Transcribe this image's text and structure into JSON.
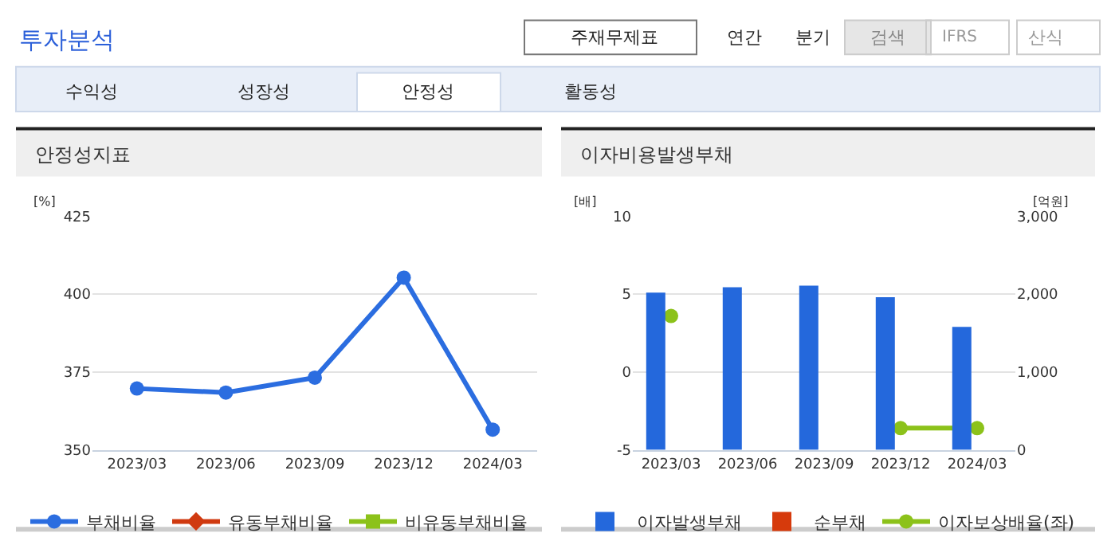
{
  "chart_data": [
    {
      "type": "line",
      "title": "안정성지표",
      "ylabel": "[%]",
      "annotations": [
        "투자분석",
        "주재무제표",
        "연간",
        "분기",
        "검색",
        "IFRS",
        "산식",
        "수익성",
        "성장성",
        "안정성",
        "활동성"
      ],
      "categories": [
        "2023/03",
        "2023/06",
        "2023/09",
        "2023/12",
        "2024/03"
      ],
      "series": [
        {
          "name": "부채비율",
          "color": "#2b6de0",
          "marker": "circle",
          "values": [
            369.7,
            368.4,
            373.2,
            405.3,
            356.5
          ]
        },
        {
          "name": "유동부채비율",
          "color": "#d03a10",
          "marker": "diamond",
          "values": [
            null,
            null,
            null,
            null,
            null
          ]
        },
        {
          "name": "비유동부채비율",
          "color": "#8cc21a",
          "marker": "square",
          "values": [
            null,
            null,
            null,
            null,
            null
          ]
        }
      ],
      "ylim": [
        350,
        425
      ],
      "yticks": [
        350,
        375,
        400,
        425
      ],
      "grid": "y",
      "legend": "bottom"
    },
    {
      "type": "bar",
      "title": "이자비용발생부채",
      "ylabel": "[배]",
      "y2label": "[억원]",
      "categories": [
        "2023/03",
        "2023/06",
        "2023/09",
        "2023/12",
        "2024/03"
      ],
      "series": [
        {
          "name": "이자발생부채",
          "color": "#2468dc",
          "axis": "y2",
          "values": [
            2020,
            2090,
            2110,
            1960,
            1580
          ]
        },
        {
          "name": "순부채",
          "color": "#d63a0c",
          "axis": "y2",
          "values": [
            null,
            null,
            null,
            null,
            null
          ]
        },
        {
          "name": "이자보상배율(좌)",
          "type": "line",
          "color": "#8cc21a",
          "marker": "circle",
          "values": [
            3.6,
            null,
            null,
            -3.6,
            -3.6
          ]
        }
      ],
      "ylim": [
        -5,
        10
      ],
      "yticks": [
        -5,
        0,
        5,
        10
      ],
      "y2lim": [
        0,
        3000
      ],
      "y2ticks": [
        0,
        {
          "value": 1000,
          "label": "1,000"
        },
        {
          "value": 2000,
          "label": "2,000"
        },
        {
          "value": 3000,
          "label": "3,000"
        }
      ],
      "grid": "y",
      "legend": "bottom"
    }
  ]
}
